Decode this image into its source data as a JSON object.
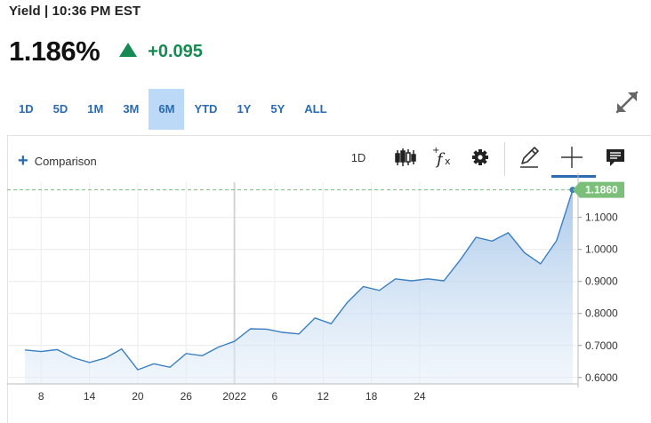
{
  "quote": {
    "meta": "Yield | 10:36 PM EST",
    "last": "1.186%",
    "change": "+0.095"
  },
  "ranges": [
    "1D",
    "5D",
    "1M",
    "3M",
    "6M",
    "YTD",
    "1Y",
    "5Y",
    "ALL"
  ],
  "active_range": "6M",
  "toolbar": {
    "comparison_label": "Comparison",
    "interval_label": "1D",
    "icons": [
      "candlestick-icon",
      "function-icon",
      "gear-icon",
      "pencil-icon",
      "crosshair-icon",
      "comment-icon"
    ],
    "active_tool": "crosshair-icon"
  },
  "colors": {
    "accent": "#2a6bb1",
    "up": "#168a52",
    "line": "#3a7fc1",
    "last_badge": "#7bbf7a"
  },
  "chart_data": {
    "type": "area",
    "x": [
      "2021-12-06",
      "2021-12-08",
      "2021-12-10",
      "2021-12-12",
      "2021-12-14",
      "2021-12-16",
      "2021-12-18",
      "2021-12-20",
      "2021-12-22",
      "2021-12-24",
      "2021-12-26",
      "2021-12-28",
      "2021-12-30",
      "2022-01-01",
      "2022-01-03",
      "2022-01-05",
      "2022-01-07",
      "2022-01-09",
      "2022-01-11",
      "2022-01-13",
      "2022-01-15",
      "2022-01-17",
      "2022-01-19",
      "2022-01-21",
      "2022-01-23",
      "2022-01-25",
      "2022-01-27"
    ],
    "values": [
      0.686,
      0.681,
      0.687,
      0.662,
      0.647,
      0.661,
      0.689,
      0.624,
      0.643,
      0.632,
      0.675,
      0.668,
      0.695,
      0.713,
      0.752,
      0.751,
      0.741,
      0.736,
      0.786,
      0.768,
      0.834,
      0.884,
      0.872,
      0.908,
      0.902,
      0.908,
      0.902
    ],
    "x_full": [
      "2021-12-06",
      "2021-12-08",
      "2021-12-10",
      "2021-12-12",
      "2021-12-14",
      "2021-12-16",
      "2021-12-18",
      "2021-12-20",
      "2021-12-22",
      "2021-12-24",
      "2021-12-26",
      "2021-12-28",
      "2021-12-30",
      "2022-01-01",
      "2022-01-03",
      "2022-01-05",
      "2022-01-07",
      "2022-01-09",
      "2022-01-11",
      "2022-01-13",
      "2022-01-15",
      "2022-01-17",
      "2022-01-19",
      "2022-01-21",
      "2022-01-23",
      "2022-01-25",
      "2022-01-27",
      "2022-01-29",
      "2022-01-31",
      "2022-02-02",
      "2022-02-04",
      "2022-02-06",
      "2022-02-08",
      "2022-02-10",
      "2022-02-12"
    ],
    "values_full": [
      0.686,
      0.681,
      0.687,
      0.662,
      0.647,
      0.661,
      0.689,
      0.624,
      0.643,
      0.632,
      0.675,
      0.668,
      0.695,
      0.713,
      0.752,
      0.751,
      0.741,
      0.736,
      0.786,
      0.768,
      0.834,
      0.884,
      0.872,
      0.908,
      0.902,
      0.908,
      0.902,
      0.966,
      1.038,
      1.026,
      1.052,
      0.99,
      0.955,
      1.028,
      1.186
    ],
    "x_tick_labels": [
      "8",
      "14",
      "20",
      "26",
      "2022",
      "6",
      "12",
      "18",
      "24"
    ],
    "y_ticks": [
      0.6,
      0.7,
      0.8,
      0.9,
      1.0,
      1.1
    ],
    "y_tick_labels": [
      "0.6000",
      "0.7000",
      "0.8000",
      "0.9000",
      "1.0000",
      "1.1000"
    ],
    "last_value_label": "1.1860",
    "ylim": [
      0.58,
      1.21
    ],
    "grid": true
  }
}
